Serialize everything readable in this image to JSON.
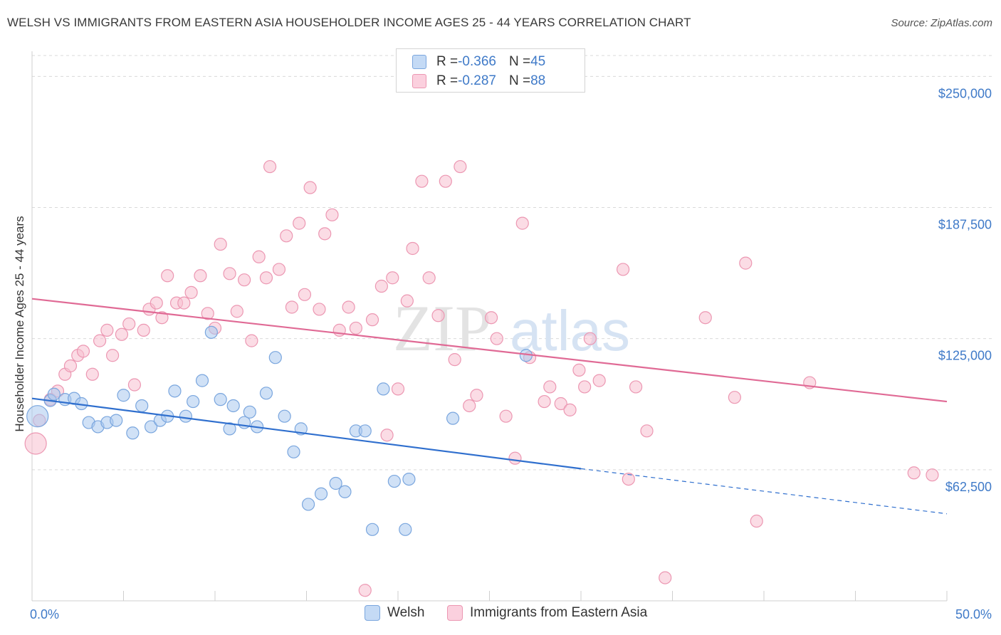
{
  "header": {
    "title": "WELSH VS IMMIGRANTS FROM EASTERN ASIA HOUSEHOLDER INCOME AGES 25 - 44 YEARS CORRELATION CHART",
    "source": "Source: ZipAtlas.com"
  },
  "watermark": {
    "zip": "ZIP",
    "atlas": "atlas"
  },
  "legend": {
    "welsh": {
      "r_label": "R = ",
      "r_value": "-0.366",
      "n_label": "N = ",
      "n_value": "45"
    },
    "immigrants": {
      "r_label": "R = ",
      "r_value": "-0.287",
      "n_label": "N = ",
      "n_value": "88"
    }
  },
  "bottom_legend": {
    "welsh": "Welsh",
    "immigrants": "Immigrants from Eastern Asia"
  },
  "colors": {
    "welsh_fill": "#a9c8ef",
    "welsh_stroke": "#7aa6de",
    "welsh_line": "#2f6fce",
    "imm_fill": "#f7bfd0",
    "imm_stroke": "#ec97b2",
    "imm_line": "#e06a95",
    "grid": "#d9d9d9",
    "axis_text": "#3f7ac8"
  },
  "chart_data": {
    "type": "scatter",
    "xlabel": "",
    "ylabel": "Householder Income Ages 25 - 44 years",
    "xlim": [
      0,
      50
    ],
    "ylim": [
      0,
      262000
    ],
    "x_tick_labels": [
      "0.0%",
      "50.0%"
    ],
    "y_ticks": [
      {
        "value": 62500,
        "label": "$62,500"
      },
      {
        "value": 125000,
        "label": "$125,000"
      },
      {
        "value": 187500,
        "label": "$187,500"
      },
      {
        "value": 250000,
        "label": "$250,000"
      }
    ],
    "grid": true,
    "legend_position": "top-center",
    "series": [
      {
        "name": "Welsh",
        "points": [
          [
            0.3,
            88000
          ],
          [
            1.0,
            95500
          ],
          [
            1.2,
            98500
          ],
          [
            1.8,
            96000
          ],
          [
            2.3,
            96500
          ],
          [
            2.7,
            94000
          ],
          [
            3.1,
            85000
          ],
          [
            3.6,
            83000
          ],
          [
            4.1,
            85000
          ],
          [
            4.6,
            86000
          ],
          [
            5.0,
            98000
          ],
          [
            5.5,
            80000
          ],
          [
            6.0,
            93000
          ],
          [
            6.5,
            83000
          ],
          [
            7.0,
            86000
          ],
          [
            7.4,
            88000
          ],
          [
            7.8,
            100000
          ],
          [
            8.4,
            88000
          ],
          [
            8.8,
            95000
          ],
          [
            9.3,
            105000
          ],
          [
            9.8,
            128000
          ],
          [
            10.3,
            96000
          ],
          [
            10.8,
            82000
          ],
          [
            11.0,
            93000
          ],
          [
            11.6,
            85000
          ],
          [
            11.9,
            90000
          ],
          [
            12.3,
            83000
          ],
          [
            12.8,
            99000
          ],
          [
            13.3,
            116000
          ],
          [
            13.8,
            88000
          ],
          [
            14.3,
            71000
          ],
          [
            14.7,
            82000
          ],
          [
            15.1,
            46000
          ],
          [
            15.8,
            51000
          ],
          [
            16.6,
            56000
          ],
          [
            17.1,
            52000
          ],
          [
            17.7,
            81000
          ],
          [
            18.2,
            81000
          ],
          [
            18.6,
            34000
          ],
          [
            19.2,
            101000
          ],
          [
            19.8,
            57000
          ],
          [
            20.4,
            34000
          ],
          [
            20.6,
            58000
          ],
          [
            23.0,
            87000
          ],
          [
            27.0,
            117000
          ]
        ]
      },
      {
        "name": "Immigrants from Eastern Asia",
        "points": [
          [
            0.2,
            75000
          ],
          [
            0.4,
            86000
          ],
          [
            1.0,
            96000
          ],
          [
            1.4,
            100000
          ],
          [
            1.8,
            108000
          ],
          [
            2.1,
            112000
          ],
          [
            2.5,
            117000
          ],
          [
            2.8,
            119000
          ],
          [
            3.3,
            108000
          ],
          [
            3.7,
            124000
          ],
          [
            4.1,
            129000
          ],
          [
            4.4,
            117000
          ],
          [
            4.9,
            127000
          ],
          [
            5.3,
            132000
          ],
          [
            5.6,
            103000
          ],
          [
            6.1,
            129000
          ],
          [
            6.4,
            139000
          ],
          [
            6.8,
            142000
          ],
          [
            7.1,
            135000
          ],
          [
            7.4,
            155000
          ],
          [
            7.9,
            142000
          ],
          [
            8.3,
            142000
          ],
          [
            8.7,
            147000
          ],
          [
            9.2,
            155000
          ],
          [
            9.6,
            137000
          ],
          [
            10.0,
            130000
          ],
          [
            10.3,
            170000
          ],
          [
            10.8,
            156000
          ],
          [
            11.2,
            138000
          ],
          [
            11.6,
            153000
          ],
          [
            12.0,
            124000
          ],
          [
            12.4,
            164000
          ],
          [
            12.8,
            154000
          ],
          [
            13.0,
            207000
          ],
          [
            13.5,
            158000
          ],
          [
            13.9,
            174000
          ],
          [
            14.2,
            140000
          ],
          [
            14.6,
            180000
          ],
          [
            14.9,
            146000
          ],
          [
            15.2,
            197000
          ],
          [
            15.7,
            139000
          ],
          [
            16.0,
            175000
          ],
          [
            16.4,
            184000
          ],
          [
            16.8,
            129000
          ],
          [
            17.3,
            140000
          ],
          [
            17.7,
            130000
          ],
          [
            18.2,
            5000
          ],
          [
            18.6,
            134000
          ],
          [
            19.1,
            150000
          ],
          [
            19.4,
            79000
          ],
          [
            19.7,
            154000
          ],
          [
            20.0,
            101000
          ],
          [
            20.5,
            143000
          ],
          [
            20.8,
            168000
          ],
          [
            21.3,
            200000
          ],
          [
            21.7,
            154000
          ],
          [
            22.2,
            136000
          ],
          [
            22.6,
            200000
          ],
          [
            23.1,
            115000
          ],
          [
            23.4,
            207000
          ],
          [
            23.9,
            93000
          ],
          [
            24.3,
            98000
          ],
          [
            25.1,
            135000
          ],
          [
            25.4,
            125000
          ],
          [
            25.9,
            88000
          ],
          [
            26.4,
            68000
          ],
          [
            26.8,
            180000
          ],
          [
            27.2,
            116000
          ],
          [
            28.0,
            95000
          ],
          [
            28.3,
            102000
          ],
          [
            28.9,
            94000
          ],
          [
            29.4,
            91000
          ],
          [
            29.9,
            110000
          ],
          [
            30.2,
            102000
          ],
          [
            30.5,
            125000
          ],
          [
            31.0,
            105000
          ],
          [
            32.3,
            158000
          ],
          [
            32.6,
            58000
          ],
          [
            33.0,
            102000
          ],
          [
            33.6,
            81000
          ],
          [
            34.6,
            11000
          ],
          [
            36.8,
            135000
          ],
          [
            38.4,
            97000
          ],
          [
            39.0,
            161000
          ],
          [
            39.6,
            38000
          ],
          [
            42.5,
            104000
          ],
          [
            48.2,
            61000
          ],
          [
            49.2,
            60000
          ]
        ]
      }
    ],
    "trendlines": [
      {
        "series": "Welsh",
        "solid_from": [
          0,
          96500
        ],
        "solid_to": [
          30,
          63000
        ],
        "dashed_to": [
          50,
          41500
        ]
      },
      {
        "series": "Immigrants from Eastern Asia",
        "from": [
          0,
          144000
        ],
        "to": [
          50,
          95000
        ]
      }
    ]
  }
}
